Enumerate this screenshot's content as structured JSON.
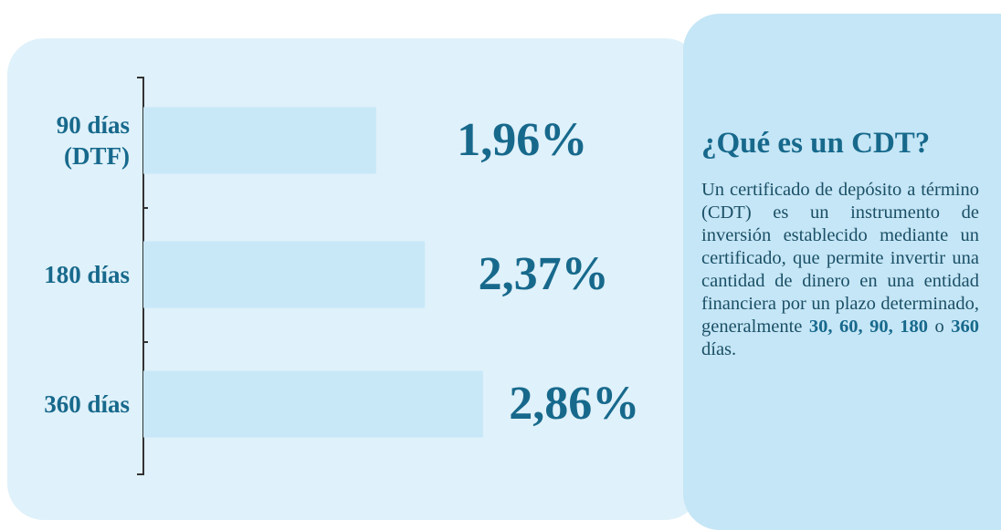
{
  "chart_data": {
    "type": "bar",
    "orientation": "horizontal",
    "categories": [
      "90 días\n(DTF)",
      "180 días",
      "360 días"
    ],
    "values": [
      1.96,
      2.37,
      2.86
    ],
    "value_labels": [
      "1,96%",
      "2,37%",
      "2,86%"
    ],
    "color": "#c8e8f8",
    "xlim": [
      0,
      4
    ]
  },
  "info_panel": {
    "title": "¿Qué es un CDT?",
    "text": [
      {
        "text": "Un certificado de depósito a término (CDT) es un instrumento de inversión establecido mediante un certificado, que permite invertir una cantidad de dinero en una entidad financiera por un plazo determinado, generalmente ",
        "bold": false
      },
      {
        "text": "30, 60, 90, 180",
        "bold": true
      },
      {
        "text": " o ",
        "bold": false
      },
      {
        "text": "360",
        "bold": true
      },
      {
        "text": " días.",
        "bold": false
      }
    ]
  }
}
